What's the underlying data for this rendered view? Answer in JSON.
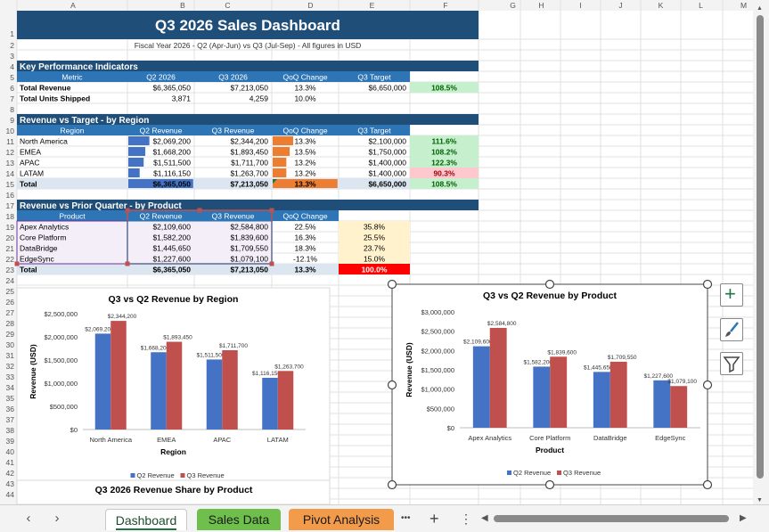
{
  "columns": [
    "A",
    "B",
    "C",
    "D",
    "E",
    "F",
    "G",
    "H",
    "I",
    "J",
    "K",
    "L",
    "M"
  ],
  "rows": [
    "1",
    "2",
    "3",
    "4",
    "5",
    "6",
    "7",
    "8",
    "9",
    "10",
    "11",
    "12",
    "13",
    "14",
    "15",
    "16",
    "17",
    "18",
    "19",
    "20",
    "21",
    "22",
    "23",
    "24",
    "25",
    "26",
    "27",
    "28",
    "29",
    "30",
    "31",
    "32",
    "33",
    "34",
    "35",
    "36",
    "37",
    "38",
    "39",
    "40",
    "41",
    "42",
    "43",
    "44"
  ],
  "title": "Q3 2026 Sales Dashboard",
  "subtitle": "Fiscal Year 2026 - Q2 (Apr-Jun) vs Q3 (Jul-Sep) - All figures in USD",
  "kpi": {
    "heading": "Key Performance Indicators",
    "headers": [
      "Metric",
      "Q2 2026",
      "Q3 2026",
      "QoQ Change",
      "Q3 Target",
      "Achievement"
    ],
    "rows": [
      [
        "Total Revenue",
        "$6,365,050",
        "$7,213,050",
        "13.3%",
        "$6,650,000",
        "108.5%"
      ],
      [
        "Total Units Shipped",
        "3,871",
        "4,259",
        "10.0%",
        "",
        ""
      ]
    ]
  },
  "region": {
    "heading": "Revenue vs Target - by Region",
    "headers": [
      "Region",
      "Q2 Revenue",
      "Q3 Revenue",
      "QoQ Change",
      "Q3 Target",
      "Achievement"
    ],
    "rows": [
      [
        "North America",
        "$2,069,200",
        "$2,344,200",
        "13.3%",
        "$2,100,000",
        "111.6%"
      ],
      [
        "EMEA",
        "$1,668,200",
        "$1,893,450",
        "13.5%",
        "$1,750,000",
        "108.2%"
      ],
      [
        "APAC",
        "$1,511,500",
        "$1,711,700",
        "13.2%",
        "$1,400,000",
        "122.3%"
      ],
      [
        "LATAM",
        "$1,116,150",
        "$1,263,700",
        "13.2%",
        "$1,400,000",
        "90.3%"
      ],
      [
        "Total",
        "$6,365,050",
        "$7,213,050",
        "13.3%",
        "$6,650,000",
        "108.5%"
      ]
    ],
    "q3_bar_fraction": [
      0.325,
      0.262,
      0.237,
      0.175,
      1.0
    ],
    "target_bar_fraction": [
      0.316,
      0.263,
      0.211,
      0.211,
      1.0
    ]
  },
  "product": {
    "heading": "Revenue vs Prior Quarter - by Product",
    "headers": [
      "Product",
      "Q2 Revenue",
      "Q3 Revenue",
      "QoQ Change",
      "Q3 Share"
    ],
    "rows": [
      [
        "Apex Analytics",
        "$2,109,600",
        "$2,584,800",
        "22.5%",
        "35.8%"
      ],
      [
        "Core Platform",
        "$1,582,200",
        "$1,839,600",
        "16.3%",
        "25.5%"
      ],
      [
        "DataBridge",
        "$1,445,650",
        "$1,709,550",
        "18.3%",
        "23.7%"
      ],
      [
        "EdgeSync",
        "$1,227,600",
        "$1,079,100",
        "-12.1%",
        "15.0%"
      ],
      [
        "Total",
        "$6,365,050",
        "$7,213,050",
        "13.3%",
        "100.0%"
      ]
    ]
  },
  "colors": {
    "title_bg": "#1f4e79",
    "section_bg": "#1f4e79",
    "header_bg": "#2e75b6",
    "q2_series": "#4472c4",
    "q3_series": "#c0504d",
    "databar_blue": "#4472c4",
    "databar_orange": "#ed7d31",
    "good_fill": "#c6efce",
    "bad_fill": "#ffc7ce",
    "share_fill": "#fff2cc",
    "total_red": "#ff0000"
  },
  "chart_data": [
    {
      "type": "bar",
      "title": "Q3 vs Q2 Revenue by Region",
      "xlabel": "Region",
      "ylabel": "Revenue (USD)",
      "categories": [
        "North America",
        "EMEA",
        "APAC",
        "LATAM"
      ],
      "series": [
        {
          "name": "Q2 Revenue",
          "values": [
            2069200,
            1668200,
            1511500,
            1116150
          ]
        },
        {
          "name": "Q3 Revenue",
          "values": [
            2344200,
            1893450,
            1711700,
            1263700
          ]
        }
      ],
      "data_labels": [
        [
          "$2,069,200",
          "$1,668,200",
          "$1,511,500",
          "$1,116,150"
        ],
        [
          "$2,344,200",
          "$1,893,450",
          "$1,711,700",
          "$1,263,700"
        ]
      ],
      "ylim": [
        0,
        2500000
      ],
      "yticks": [
        "$0",
        "$500,000",
        "$1,000,000",
        "$1,500,000",
        "$2,000,000",
        "$2,500,000"
      ],
      "legend": "bottom",
      "grid": false
    },
    {
      "type": "bar",
      "title": "Q3 vs Q2 Revenue by Product",
      "xlabel": "Product",
      "ylabel": "Revenue (USD)",
      "categories": [
        "Apex Analytics",
        "Core Platform",
        "DataBridge",
        "EdgeSync"
      ],
      "series": [
        {
          "name": "Q2 Revenue",
          "values": [
            2109600,
            1582200,
            1445650,
            1227600
          ]
        },
        {
          "name": "Q3 Revenue",
          "values": [
            2584800,
            1839600,
            1709550,
            1079100
          ]
        }
      ],
      "data_labels": [
        [
          "$2,109,600",
          "$1,582,200",
          "$1,445,650",
          "$1,227,600"
        ],
        [
          "$2,584,800",
          "$1,839,600",
          "$1,709,550",
          "$1,079,100"
        ]
      ],
      "ylim": [
        0,
        3000000
      ],
      "yticks": [
        "$0",
        "$500,000",
        "$1,000,000",
        "$1,500,000",
        "$2,000,000",
        "$2,500,000",
        "$3,000,000"
      ],
      "legend": "bottom",
      "grid": false
    },
    {
      "type": "pie",
      "title": "Q3 2026 Revenue Share by Product"
    }
  ],
  "sheet_tabs": [
    "Dashboard",
    "Sales Data",
    "Pivot Analysis"
  ],
  "tabbar": {
    "prev": "‹",
    "next": "›",
    "more": "•••",
    "add": "+",
    "menu": "⋮"
  }
}
